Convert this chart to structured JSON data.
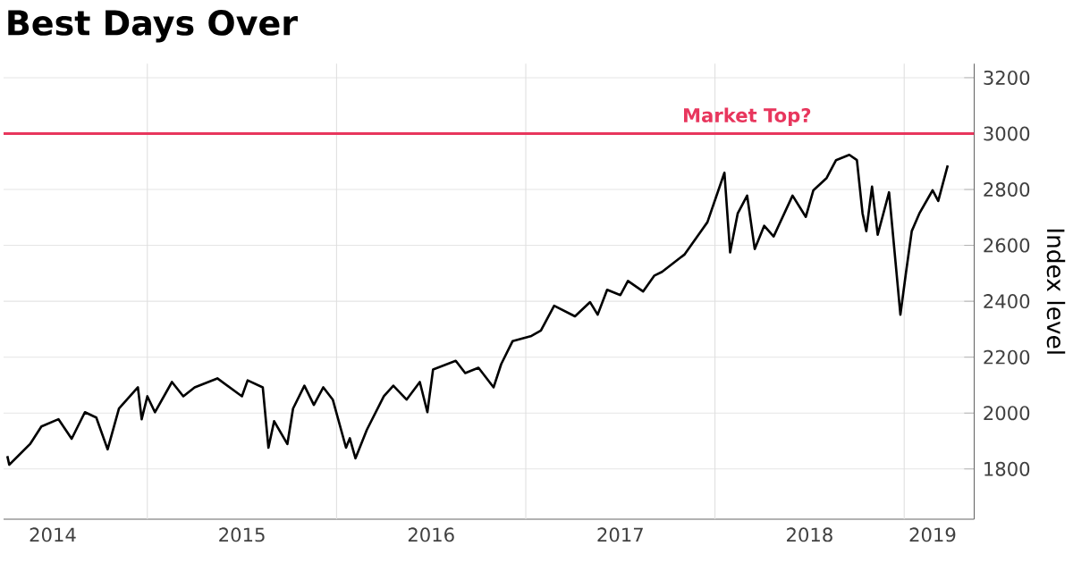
{
  "chart_data": {
    "type": "line",
    "title": "Best Days Over",
    "ylabel": "Index level",
    "x": [
      2014.26,
      2014.27,
      2014.38,
      2014.44,
      2014.53,
      2014.6,
      2014.67,
      2014.73,
      2014.79,
      2014.85,
      2014.95,
      2014.97,
      2015.0,
      2015.04,
      2015.13,
      2015.19,
      2015.25,
      2015.37,
      2015.5,
      2015.53,
      2015.61,
      2015.64,
      2015.67,
      2015.74,
      2015.77,
      2015.83,
      2015.88,
      2015.93,
      2015.98,
      2016.05,
      2016.07,
      2016.1,
      2016.16,
      2016.25,
      2016.3,
      2016.37,
      2016.44,
      2016.48,
      2016.51,
      2016.63,
      2016.68,
      2016.75,
      2016.83,
      2016.87,
      2016.93,
      2017.03,
      2017.08,
      2017.15,
      2017.26,
      2017.34,
      2017.38,
      2017.43,
      2017.5,
      2017.54,
      2017.62,
      2017.68,
      2017.72,
      2017.84,
      2017.96,
      2018.05,
      2018.08,
      2018.12,
      2018.17,
      2018.21,
      2018.26,
      2018.31,
      2018.41,
      2018.48,
      2018.52,
      2018.59,
      2018.64,
      2018.71,
      2018.75,
      2018.78,
      2018.8,
      2018.83,
      2018.86,
      2018.92,
      2018.98,
      2019.01,
      2019.04,
      2019.08,
      2019.15,
      2019.18,
      2019.23
    ],
    "values": [
      1846,
      1815,
      1889,
      1952,
      1978,
      1908,
      2003,
      1984,
      1870,
      2016,
      2092,
      1978,
      2060,
      2003,
      2111,
      2060,
      2092,
      2124,
      2060,
      2117,
      2092,
      1876,
      1971,
      1889,
      2016,
      2098,
      2029,
      2092,
      2048,
      1876,
      1910,
      1838,
      1940,
      2060,
      2098,
      2048,
      2111,
      2003,
      2156,
      2187,
      2143,
      2162,
      2092,
      2175,
      2257,
      2276,
      2295,
      2384,
      2346,
      2397,
      2352,
      2441,
      2422,
      2473,
      2435,
      2492,
      2505,
      2568,
      2683,
      2860,
      2575,
      2714,
      2778,
      2587,
      2670,
      2632,
      2778,
      2702,
      2797,
      2841,
      2905,
      2924,
      2905,
      2714,
      2651,
      2810,
      2638,
      2790,
      2352,
      2505,
      2651,
      2714,
      2797,
      2759,
      2886
    ],
    "color": "#000000",
    "line_style": "solid",
    "marker": "none",
    "xlim": [
      2014.24,
      2019.37
    ],
    "xticks": [
      {
        "value": 2014.5,
        "label": "2014"
      },
      {
        "value": 2015,
        "label": null
      },
      {
        "value": 2015.5,
        "label": "2015"
      },
      {
        "value": 2016,
        "label": null
      },
      {
        "value": 2016.5,
        "label": "2016"
      },
      {
        "value": 2017,
        "label": null
      },
      {
        "value": 2017.5,
        "label": "2017"
      },
      {
        "value": 2018,
        "label": null
      },
      {
        "value": 2018.5,
        "label": "2018"
      },
      {
        "value": 2019,
        "label": null
      },
      {
        "value": 2019.15,
        "label": "2019"
      }
    ],
    "ylim": [
      1620,
      3250
    ],
    "yticks": [
      1800,
      2000,
      2200,
      2400,
      2600,
      2800,
      3000,
      3200
    ],
    "grid": true,
    "ref_lines": [
      {
        "axis": "y",
        "value": 3000,
        "label": "Market Top?",
        "color": "#e8365d"
      }
    ]
  }
}
